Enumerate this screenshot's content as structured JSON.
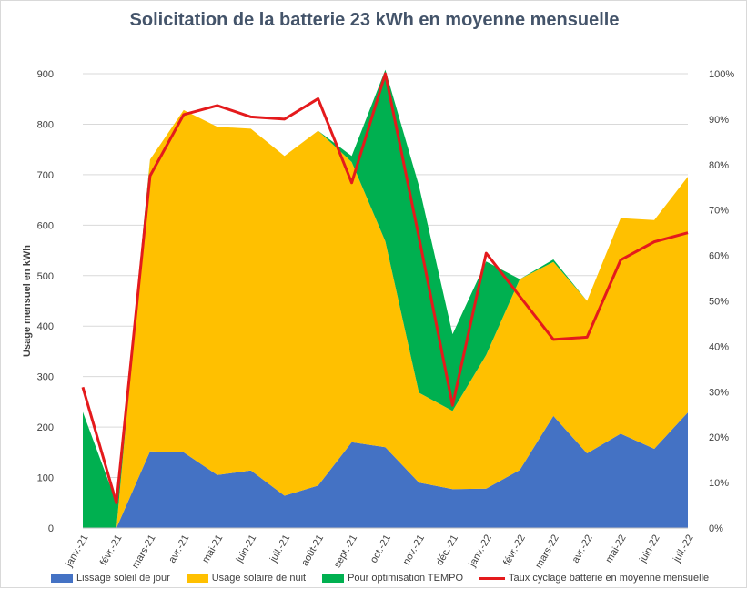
{
  "chart_data": {
    "type": "area",
    "title": "Solicitation  de la batterie 23 kWh en moyenne mensuelle",
    "ylabel": "Usage  mensuel en kWh",
    "ylim": [
      0,
      900
    ],
    "y2lim": [
      0,
      100
    ],
    "y_ticks": [
      "0",
      "100",
      "200",
      "300",
      "400",
      "500",
      "600",
      "700",
      "800",
      "900"
    ],
    "y2_ticks": [
      "0%",
      "10%",
      "20%",
      "30%",
      "40%",
      "50%",
      "60%",
      "70%",
      "80%",
      "90%",
      "100%"
    ],
    "categories": [
      "janv.-21",
      "févr.-21",
      "mars-21",
      "avr.-21",
      "mai-21",
      "juin-21",
      "juil.-21",
      "août-21",
      "sept.-21",
      "oct.-21",
      "nov.-21",
      "déc.-21",
      "janv.-22",
      "févr.-22",
      "mars-22",
      "avr.-22",
      "mai-22",
      "juin-22",
      "juil.-22"
    ],
    "series": [
      {
        "name": "Lissage soleil de jour",
        "kind": "area",
        "color": "#4472c4",
        "values": [
          0,
          0,
          152,
          150,
          105,
          114,
          64,
          84,
          170,
          160,
          90,
          77,
          78,
          115,
          222,
          148,
          187,
          157,
          229
        ]
      },
      {
        "name": "Usage solaire de nuit",
        "kind": "area",
        "color": "#ffc000",
        "values": [
          0,
          0,
          578,
          678,
          690,
          677,
          673,
          703,
          555,
          408,
          178,
          155,
          265,
          378,
          305,
          302,
          427,
          453,
          467
        ]
      },
      {
        "name": "Pour optimisation TEMPO",
        "kind": "area",
        "color": "#00b050",
        "values": [
          230,
          50,
          0,
          0,
          0,
          0,
          0,
          0,
          12,
          340,
          410,
          152,
          185,
          0,
          5,
          0,
          0,
          0,
          0
        ]
      },
      {
        "name": "Taux cyclage batterie en moyenne mensuelle",
        "kind": "line",
        "axis": "right",
        "color": "#e41a1c",
        "values": [
          31,
          5.5,
          77.5,
          91,
          93,
          90.5,
          90,
          94.5,
          76,
          100,
          64,
          27,
          60.5,
          51,
          41.5,
          42,
          59,
          63,
          65
        ]
      }
    ]
  }
}
